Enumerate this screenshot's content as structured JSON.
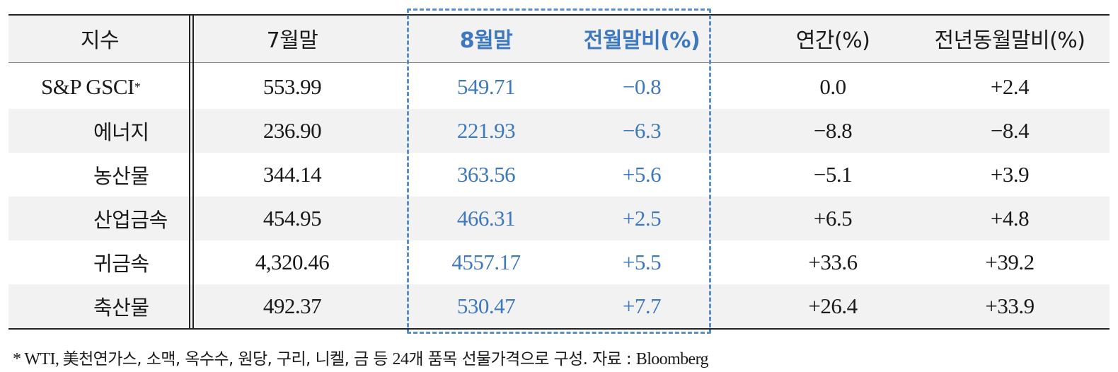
{
  "table": {
    "headers": [
      "지수",
      "7월말",
      "8월말",
      "전월말비(%)",
      "연간(%)",
      "전년동월말비(%)"
    ],
    "rows": [
      {
        "name": "S&P GSCI",
        "sup": "*",
        "jul": "553.99",
        "aug": "549.71",
        "mom": "−0.8",
        "ytd": "0.0",
        "yoy": "+2.4"
      },
      {
        "name": "에너지",
        "jul": "236.90",
        "aug": "221.93",
        "mom": "−6.3",
        "ytd": "−8.8",
        "yoy": "−8.4"
      },
      {
        "name": "농산물",
        "jul": "344.14",
        "aug": "363.56",
        "mom": "+5.6",
        "ytd": "−5.1",
        "yoy": "+3.9"
      },
      {
        "name": "산업금속",
        "jul": "454.95",
        "aug": "466.31",
        "mom": "+2.5",
        "ytd": "+6.5",
        "yoy": "+4.8"
      },
      {
        "name": "귀금속",
        "jul": "4,320.46",
        "aug": "4557.17",
        "mom": "+5.5",
        "ytd": "+33.6",
        "yoy": "+39.2"
      },
      {
        "name": "축산물",
        "jul": "492.37",
        "aug": "530.47",
        "mom": "+7.7",
        "ytd": "+26.4",
        "yoy": "+33.9"
      }
    ]
  },
  "footnote": {
    "prefix": "* WTI, ",
    "body": "美천연가스, 소맥, 옥수수, 원당, 구리, 니켈, 금 등 ",
    "count": "24",
    "tail": "개 품목 선물가격으로 구성. 자료 : ",
    "source": "Bloomberg"
  },
  "colors": {
    "highlight": "#3e78bd",
    "shade": "#f2f2f2",
    "dash": "#5b8fc9"
  }
}
